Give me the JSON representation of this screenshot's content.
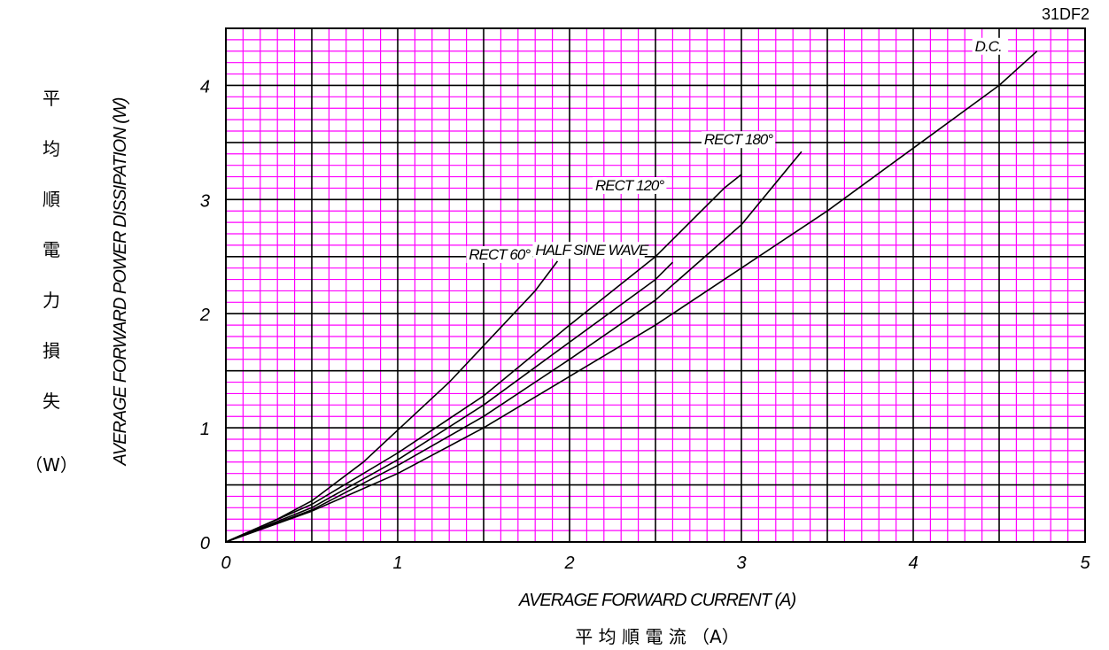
{
  "model_label": "31DF2",
  "y_label_jp": [
    "平",
    "均",
    "順",
    "電",
    "力",
    "損",
    "失"
  ],
  "y_unit_jp": "（W）",
  "x_label_jp": "平 均 順 電 流 （A）",
  "colors": {
    "minor_grid": "#ff00ff",
    "major_grid": "#000000",
    "curve": "#000000"
  },
  "chart_data": {
    "type": "line",
    "xlabel": "AVERAGE FORWARD CURRENT (A)",
    "ylabel": "AVERAGE FORWARD POWER DISSIPATION (W)",
    "xlim": [
      0,
      5
    ],
    "ylim": [
      0,
      4.5
    ],
    "x_ticks": [
      0,
      1,
      2,
      3,
      4,
      5
    ],
    "y_ticks": [
      0,
      1,
      2,
      3,
      4
    ],
    "grid": true,
    "legend": "none",
    "series": [
      {
        "name": "RECT 60°",
        "x": [
          0,
          0.3,
          0.5,
          0.8,
          1.0,
          1.3,
          1.5,
          1.8,
          1.93
        ],
        "y": [
          0,
          0.2,
          0.36,
          0.7,
          0.98,
          1.4,
          1.72,
          2.2,
          2.46
        ]
      },
      {
        "name": "RECT 120°",
        "x": [
          0,
          0.5,
          1.0,
          1.5,
          2.0,
          2.5,
          2.9,
          3.0
        ],
        "y": [
          0,
          0.33,
          0.78,
          1.28,
          1.9,
          2.5,
          3.1,
          3.22
        ]
      },
      {
        "name": "HALF SINE WAVE",
        "x": [
          0,
          0.5,
          1.0,
          1.5,
          2.0,
          2.5,
          2.6
        ],
        "y": [
          0,
          0.3,
          0.72,
          1.2,
          1.75,
          2.3,
          2.45
        ]
      },
      {
        "name": "RECT 180°",
        "x": [
          0,
          0.5,
          1.0,
          1.5,
          2.0,
          2.5,
          3.0,
          3.35
        ],
        "y": [
          0,
          0.28,
          0.67,
          1.1,
          1.6,
          2.12,
          2.78,
          3.42
        ]
      },
      {
        "name": "D.C.",
        "x": [
          0,
          0.5,
          1.0,
          1.5,
          2.0,
          2.5,
          3.0,
          3.5,
          4.0,
          4.5,
          4.72
        ],
        "y": [
          0,
          0.27,
          0.6,
          1.0,
          1.45,
          1.9,
          2.4,
          2.9,
          3.45,
          4.0,
          4.3
        ]
      }
    ]
  }
}
